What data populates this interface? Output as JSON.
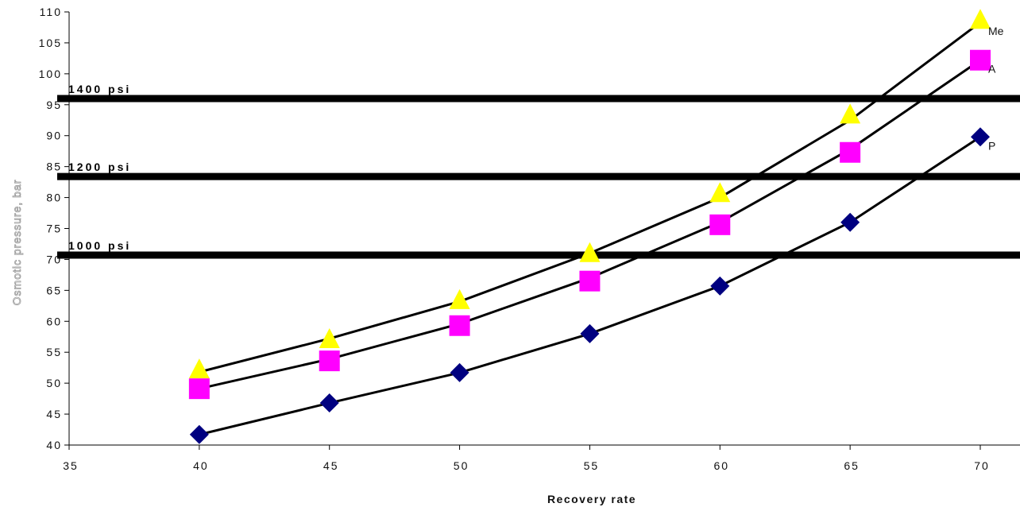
{
  "chart_data": {
    "type": "scatter",
    "title": "",
    "xlabel": "Recovery rate",
    "ylabel": "Osmotic pressure, bar",
    "xlim": [
      35,
      70
    ],
    "ylim": [
      40,
      110
    ],
    "x_ticks": [
      35,
      40,
      45,
      50,
      55,
      60,
      65,
      70
    ],
    "y_ticks": [
      40,
      45,
      50,
      55,
      60,
      65,
      70,
      75,
      80,
      85,
      90,
      95,
      100,
      105,
      110
    ],
    "grid": false,
    "series": [
      {
        "name": "Me",
        "marker": "triangle",
        "color": "#ffff00",
        "x": [
          40,
          45,
          50,
          55,
          60,
          65,
          70
        ],
        "y": [
          51.8,
          56.7,
          63.0,
          70.6,
          80.3,
          93.0,
          108.3
        ],
        "fit_line": [
          [
            40,
            51.8
          ],
          [
            45,
            57.2
          ],
          [
            50,
            63.2
          ],
          [
            55,
            71.0
          ],
          [
            60,
            80.0
          ],
          [
            65,
            92.5
          ],
          [
            70,
            108.3
          ]
        ]
      },
      {
        "name": "A",
        "marker": "square",
        "color": "#ff00ff",
        "x": [
          40,
          45,
          50,
          55,
          60,
          65,
          70
        ],
        "y": [
          49.1,
          53.6,
          59.3,
          66.5,
          75.6,
          87.3,
          102.2
        ],
        "fit_line": [
          [
            40,
            49.1
          ],
          [
            45,
            53.9
          ],
          [
            50,
            59.6
          ],
          [
            55,
            67.0
          ],
          [
            60,
            76.0
          ],
          [
            65,
            87.8
          ],
          [
            70,
            102.2
          ]
        ]
      },
      {
        "name": "P",
        "marker": "diamond",
        "color": "#000080",
        "x": [
          40,
          45,
          50,
          55,
          60,
          65,
          70
        ],
        "y": [
          41.7,
          46.8,
          51.7,
          58.0,
          65.7,
          76.0,
          89.8
        ],
        "fit_line": [
          [
            40,
            41.7
          ],
          [
            45,
            46.8
          ],
          [
            50,
            51.7
          ],
          [
            55,
            58.0
          ],
          [
            60,
            65.7
          ],
          [
            65,
            76.0
          ],
          [
            70,
            89.8
          ]
        ]
      }
    ],
    "reference_lines": [
      {
        "label": "1400 psi",
        "y": 96.0
      },
      {
        "label": "1200 psi",
        "y": 83.4
      },
      {
        "label": "1000 psi",
        "y": 70.7
      }
    ]
  }
}
